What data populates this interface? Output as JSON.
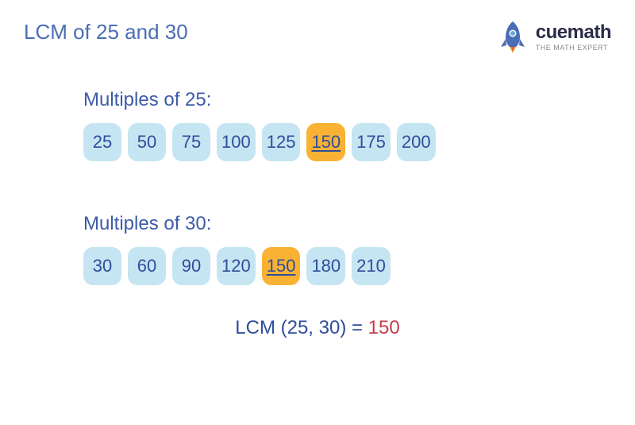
{
  "title": "LCM of 25 and 30",
  "logo": {
    "main": "cuemath",
    "sub": "THE MATH EXPERT"
  },
  "colors": {
    "title": "#4a6db5",
    "label": "#3d5ba8",
    "chip_bg": "#c5e5f2",
    "chip_highlight": "#f9b233",
    "chip_text": "#2f4d9b",
    "result_text": "#2f4d9b",
    "result_value": "#c93a4a",
    "rocket_body": "#4a6db5",
    "rocket_flame1": "#f9b233",
    "rocket_flame2": "#e85a3a"
  },
  "section1": {
    "label": "Multiples of 25:",
    "items": [
      {
        "v": "25",
        "hl": false
      },
      {
        "v": "50",
        "hl": false
      },
      {
        "v": "75",
        "hl": false
      },
      {
        "v": "100",
        "hl": false
      },
      {
        "v": "125",
        "hl": false
      },
      {
        "v": "150",
        "hl": true
      },
      {
        "v": "175",
        "hl": false
      },
      {
        "v": "200",
        "hl": false
      }
    ]
  },
  "section2": {
    "label": "Multiples of 30:",
    "items": [
      {
        "v": "30",
        "hl": false
      },
      {
        "v": "60",
        "hl": false
      },
      {
        "v": "90",
        "hl": false
      },
      {
        "v": "120",
        "hl": false
      },
      {
        "v": "150",
        "hl": true
      },
      {
        "v": "180",
        "hl": false
      },
      {
        "v": "210",
        "hl": false
      }
    ]
  },
  "result": {
    "prefix": "LCM (25, 30) = ",
    "value": "150"
  }
}
